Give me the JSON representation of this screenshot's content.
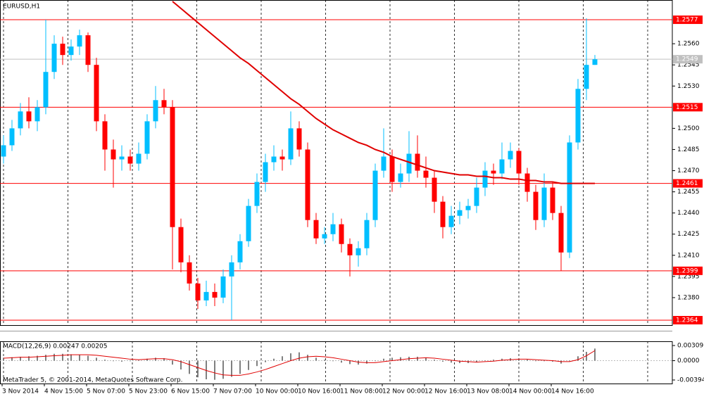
{
  "chart_data": [
    {
      "type": "candlestick",
      "title": "EURUSD,H1",
      "categories": [
        "3 Nov 2014",
        null,
        null,
        null,
        null,
        "4 Nov 15:00",
        null,
        null,
        null,
        null,
        "5 Nov 07:00",
        null,
        null,
        null,
        null,
        "5 Nov 23:00",
        null,
        null,
        null,
        null,
        "6 Nov 15:00",
        null,
        null,
        null,
        null,
        "7 Nov 07:00",
        null,
        null,
        null,
        null,
        "10 Nov 00:00",
        null,
        null,
        null,
        null,
        "10 Nov 16:00",
        null,
        null,
        null,
        null,
        "11 Nov 08:00",
        null,
        null,
        null,
        null,
        "12 Nov 00:00",
        null,
        null,
        null,
        null,
        "12 Nov 16:00",
        null,
        null,
        null,
        null,
        "13 Nov 08:00",
        null,
        null,
        null,
        null,
        "14 Nov 00:00",
        null,
        null,
        null,
        null,
        "14 Nov 16:00",
        null,
        null,
        null,
        null,
        null
      ],
      "open": [
        1.248,
        1.2488,
        1.25,
        1.2512,
        1.2505,
        1.2515,
        1.254,
        1.256,
        1.2552,
        1.2558,
        1.2566,
        1.2545,
        1.2505,
        1.2485,
        1.2478,
        1.248,
        1.2475,
        1.2482,
        1.2505,
        1.252,
        1.2515,
        1.243,
        1.2405,
        1.239,
        1.2378,
        1.2384,
        1.238,
        1.2395,
        1.2405,
        1.242,
        1.2445,
        1.2462,
        1.2476,
        1.248,
        1.2478,
        1.25,
        1.2485,
        1.2435,
        1.2422,
        1.2425,
        1.2432,
        1.2418,
        1.241,
        1.2415,
        1.2435,
        1.247,
        1.248,
        1.2462,
        1.2468,
        1.2482,
        1.247,
        1.2465,
        1.2448,
        1.243,
        1.2438,
        1.2442,
        1.2445,
        1.2458,
        1.247,
        1.2468,
        1.2478,
        1.2484,
        1.2468,
        1.2455,
        1.2435,
        1.2458,
        1.244,
        1.2412,
        1.249,
        1.2528,
        1.2545
      ],
      "high": [
        1.2495,
        1.2506,
        1.2518,
        1.2522,
        1.252,
        1.2577,
        1.2566,
        1.2565,
        1.2563,
        1.257,
        1.2568,
        1.255,
        1.251,
        1.2492,
        1.2488,
        1.2485,
        1.249,
        1.251,
        1.253,
        1.2528,
        1.252,
        1.2436,
        1.241,
        1.2394,
        1.2392,
        1.239,
        1.24,
        1.241,
        1.2425,
        1.245,
        1.2468,
        1.2482,
        1.2488,
        1.2485,
        1.2512,
        1.2505,
        1.249,
        1.244,
        1.243,
        1.244,
        1.2436,
        1.2422,
        1.242,
        1.244,
        1.2475,
        1.25,
        1.2485,
        1.2475,
        1.2498,
        1.2495,
        1.248,
        1.247,
        1.2452,
        1.2445,
        1.2448,
        1.245,
        1.2465,
        1.2476,
        1.2475,
        1.249,
        1.249,
        1.2486,
        1.2472,
        1.246,
        1.2468,
        1.2462,
        1.2445,
        1.2495,
        1.2535,
        1.2578,
        1.2552
      ],
      "low": [
        1.2475,
        1.2484,
        1.2495,
        1.25,
        1.2498,
        1.251,
        1.2535,
        1.2545,
        1.2548,
        1.2552,
        1.254,
        1.2498,
        1.247,
        1.2458,
        1.247,
        1.247,
        1.247,
        1.2478,
        1.25,
        1.251,
        1.24,
        1.2398,
        1.2385,
        1.2372,
        1.2374,
        1.2374,
        1.2376,
        1.2364,
        1.24,
        1.2416,
        1.244,
        1.2455,
        1.247,
        1.247,
        1.2474,
        1.248,
        1.243,
        1.2418,
        1.2418,
        1.242,
        1.2412,
        1.2395,
        1.2402,
        1.241,
        1.243,
        1.2465,
        1.2455,
        1.2458,
        1.2462,
        1.2465,
        1.2458,
        1.244,
        1.2422,
        1.2425,
        1.2432,
        1.2436,
        1.244,
        1.2452,
        1.246,
        1.2464,
        1.2472,
        1.246,
        1.2448,
        1.2428,
        1.243,
        1.2435,
        1.2399,
        1.2408,
        1.2485,
        1.252,
        1.2545
      ],
      "close": [
        1.2488,
        1.25,
        1.2512,
        1.2505,
        1.2515,
        1.254,
        1.256,
        1.2552,
        1.2558,
        1.2566,
        1.2545,
        1.2505,
        1.2485,
        1.2478,
        1.248,
        1.2475,
        1.2482,
        1.2505,
        1.252,
        1.2515,
        1.243,
        1.2405,
        1.239,
        1.2378,
        1.2384,
        1.238,
        1.2395,
        1.2405,
        1.242,
        1.2445,
        1.2462,
        1.2476,
        1.248,
        1.2478,
        1.25,
        1.2485,
        1.2435,
        1.2422,
        1.2425,
        1.2432,
        1.2418,
        1.241,
        1.2415,
        1.2435,
        1.247,
        1.248,
        1.2462,
        1.2468,
        1.2482,
        1.247,
        1.2465,
        1.2448,
        1.243,
        1.2438,
        1.2442,
        1.2445,
        1.2458,
        1.247,
        1.2468,
        1.2478,
        1.2484,
        1.2468,
        1.2455,
        1.2435,
        1.2458,
        1.244,
        1.2412,
        1.249,
        1.2528,
        1.2545,
        1.2549
      ],
      "up_color": "#00bfff",
      "down_color": "#ff0000",
      "ma": {
        "color": "#e00000",
        "values": [
          null,
          null,
          null,
          null,
          null,
          null,
          null,
          null,
          null,
          null,
          null,
          null,
          null,
          null,
          null,
          null,
          null,
          null,
          null,
          null,
          1.259,
          1.2585,
          1.258,
          1.2575,
          1.257,
          1.2565,
          1.256,
          1.2555,
          1.255,
          1.2546,
          1.2541,
          1.2536,
          1.2531,
          1.2526,
          1.2521,
          1.2517,
          1.2512,
          1.2507,
          1.2503,
          1.2499,
          1.2496,
          1.2493,
          1.249,
          1.2488,
          1.2485,
          1.2483,
          1.248,
          1.2478,
          1.2476,
          1.2474,
          1.2472,
          1.247,
          1.2469,
          1.2468,
          1.2467,
          1.2467,
          1.2466,
          1.2466,
          1.2465,
          1.2465,
          1.2464,
          1.2464,
          1.2463,
          1.2463,
          1.2462,
          1.2462,
          1.2461,
          1.2461,
          1.2461,
          1.2461,
          1.2461
        ]
      },
      "levels": [
        1.2577,
        1.2515,
        1.2461,
        1.2399,
        1.2364
      ],
      "level_color": "#ff0000",
      "bid": 1.2549,
      "bid_color": "#c0c0c0",
      "ylim": [
        1.23605,
        1.2591
      ],
      "yticks": [
        {
          "value": 1.256,
          "label": "1.2560"
        },
        1.2545,
        {
          "value": 1.253,
          "label": "1.2530"
        },
        {
          "value": 1.25,
          "label": "1.2500"
        },
        1.2485,
        {
          "value": 1.247,
          "label": "1.2470"
        },
        1.2455,
        {
          "value": 1.244,
          "label": "1.2440"
        },
        1.2425,
        {
          "value": 1.241,
          "label": "1.2410"
        },
        1.2395,
        {
          "value": 1.238,
          "label": "1.2380"
        }
      ],
      "grid": true
    },
    {
      "type": "macd",
      "title": "MACD(12,26,9) 0.00247 0.00205",
      "histogram": {
        "color": "#808080",
        "values": [
          0.0006,
          0.0007,
          0.0008,
          0.0009,
          0.001,
          0.0012,
          0.0014,
          0.0014,
          0.0013,
          0.0012,
          0.001,
          0.0006,
          0.0002,
          -0.0001,
          -0.0002,
          -0.0001,
          0.0001,
          0.0004,
          0.0006,
          0.0005,
          -0.0008,
          -0.0018,
          -0.0027,
          -0.0034,
          -0.0038,
          -0.0039,
          -0.0037,
          -0.0033,
          -0.0027,
          -0.0019,
          -0.0011,
          -0.0003,
          0.0004,
          0.0009,
          0.0015,
          0.0017,
          0.0012,
          0.0006,
          0.0002,
          -0.0001,
          -0.0004,
          -0.0007,
          -0.0008,
          -0.0006,
          -0.0001,
          0.0004,
          0.0006,
          0.0007,
          0.0008,
          0.0008,
          0.0006,
          0.0002,
          -0.0002,
          -0.0004,
          -0.0005,
          -0.0005,
          -0.0003,
          0.0,
          0.0002,
          0.0004,
          0.0005,
          0.0004,
          0.0002,
          -0.0001,
          -0.0001,
          -0.0002,
          -0.0006,
          -0.0001,
          0.0009,
          0.0018,
          0.00247
        ]
      },
      "signal": {
        "color": "#e00000",
        "values": [
          0.0005,
          0.0006,
          0.0007,
          0.0007,
          0.0008,
          0.0009,
          0.001,
          0.0011,
          0.0012,
          0.0012,
          0.0012,
          0.0011,
          0.0009,
          0.0007,
          0.0005,
          0.0003,
          0.0002,
          0.0003,
          0.0004,
          0.0004,
          0.0002,
          -0.0002,
          -0.0008,
          -0.0014,
          -0.002,
          -0.0025,
          -0.0029,
          -0.003,
          -0.003,
          -0.0027,
          -0.0023,
          -0.0018,
          -0.0012,
          -0.0006,
          0.0,
          0.0005,
          0.0008,
          0.0009,
          0.0008,
          0.0006,
          0.0003,
          0.0,
          -0.0003,
          -0.0004,
          -0.0004,
          -0.0002,
          0.0,
          0.0002,
          0.0004,
          0.0005,
          0.0006,
          0.0005,
          0.0003,
          0.0001,
          -0.0001,
          -0.0002,
          -0.0003,
          -0.0002,
          -0.0001,
          0.0001,
          0.0002,
          0.0003,
          0.0003,
          0.0002,
          0.0001,
          0.0,
          -0.0002,
          -0.0002,
          0.0002,
          0.001,
          0.00205
        ]
      },
      "ylim": [
        -0.00466,
        0.00395
      ],
      "yticks": [
        0.00309,
        {
          "value": 0,
          "label": "0.0000"
        },
        -0.00394
      ],
      "footer": "MetaTrader 5, © 2001-2014, MetaQuotes Software Corp."
    }
  ]
}
